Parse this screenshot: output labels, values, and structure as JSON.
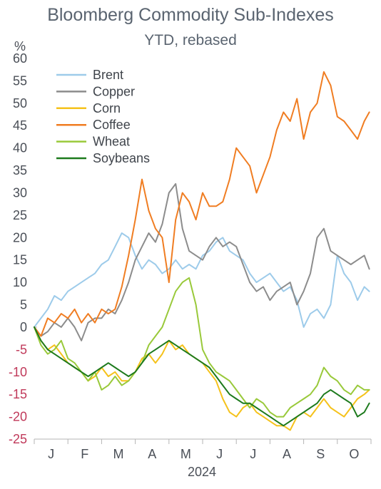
{
  "chart_data": {
    "type": "line",
    "title": "Bloomberg Commodity Sub-Indexes",
    "subtitle": "YTD, rebased",
    "ylabel": "%",
    "xlabel": "2024",
    "ylim": [
      -25,
      60
    ],
    "yticks": [
      60,
      55,
      50,
      45,
      40,
      35,
      30,
      25,
      20,
      15,
      10,
      5,
      0,
      -5,
      -10,
      -15,
      -20,
      -25
    ],
    "xlim": [
      0,
      10
    ],
    "month_labels": [
      "J",
      "F",
      "M",
      "A",
      "M",
      "J",
      "J",
      "A",
      "S",
      "O"
    ],
    "grid": false,
    "legend_position": "top-left",
    "series": [
      {
        "name": "Brent",
        "color": "#9dcbea",
        "x": [
          0,
          0.2,
          0.4,
          0.6,
          0.8,
          1.0,
          1.2,
          1.4,
          1.6,
          1.8,
          2.0,
          2.2,
          2.4,
          2.6,
          2.8,
          3.0,
          3.2,
          3.4,
          3.6,
          3.8,
          4.0,
          4.2,
          4.4,
          4.6,
          4.8,
          5.0,
          5.2,
          5.4,
          5.6,
          5.8,
          6.0,
          6.2,
          6.4,
          6.6,
          6.8,
          7.0,
          7.2,
          7.4,
          7.6,
          7.8,
          8.0,
          8.2,
          8.4,
          8.6,
          8.8,
          9.0,
          9.2,
          9.4,
          9.6,
          9.8,
          9.95
        ],
        "y": [
          0,
          2,
          4,
          7,
          6,
          8,
          9,
          10,
          11,
          12,
          14,
          15,
          18,
          21,
          20,
          16,
          13,
          15,
          14,
          12,
          13,
          15,
          13,
          14,
          13,
          16,
          17,
          19,
          20,
          17,
          16,
          15,
          12,
          10,
          11,
          12,
          10,
          8,
          9,
          6,
          0,
          3,
          4,
          2,
          5,
          16,
          12,
          10,
          6,
          9,
          8
        ]
      },
      {
        "name": "Copper",
        "color": "#8c8c8c",
        "x": [
          0,
          0.2,
          0.4,
          0.6,
          0.8,
          1.0,
          1.2,
          1.4,
          1.6,
          1.8,
          2.0,
          2.2,
          2.4,
          2.6,
          2.8,
          3.0,
          3.2,
          3.4,
          3.6,
          3.8,
          4.0,
          4.2,
          4.4,
          4.6,
          4.8,
          5.0,
          5.2,
          5.4,
          5.6,
          5.8,
          6.0,
          6.2,
          6.4,
          6.6,
          6.8,
          7.0,
          7.2,
          7.4,
          7.6,
          7.8,
          8.0,
          8.2,
          8.4,
          8.6,
          8.8,
          9.0,
          9.2,
          9.4,
          9.6,
          9.8,
          9.95
        ],
        "y": [
          0,
          -2,
          -1,
          1,
          0,
          2,
          0,
          -3,
          1,
          2,
          2,
          4,
          3,
          6,
          10,
          15,
          18,
          21,
          19,
          23,
          30,
          32,
          22,
          17,
          16,
          15,
          18,
          20,
          18,
          19,
          18,
          14,
          10,
          8,
          9,
          6,
          8,
          9,
          10,
          5,
          8,
          12,
          20,
          22,
          17,
          16,
          15,
          14,
          15,
          16,
          13
        ]
      },
      {
        "name": "Corn",
        "color": "#f5c21b",
        "x": [
          0,
          0.2,
          0.4,
          0.6,
          0.8,
          1.0,
          1.2,
          1.4,
          1.6,
          1.8,
          2.0,
          2.2,
          2.4,
          2.6,
          2.8,
          3.0,
          3.2,
          3.4,
          3.6,
          3.8,
          4.0,
          4.2,
          4.4,
          4.6,
          4.8,
          5.0,
          5.2,
          5.4,
          5.6,
          5.8,
          6.0,
          6.2,
          6.4,
          6.6,
          6.8,
          7.0,
          7.2,
          7.4,
          7.6,
          7.8,
          8.0,
          8.2,
          8.4,
          8.6,
          8.8,
          9.0,
          9.2,
          9.4,
          9.6,
          9.8,
          9.95
        ],
        "y": [
          0,
          -3,
          -5,
          -4,
          -6,
          -8,
          -9,
          -10,
          -12,
          -11,
          -9,
          -11,
          -10,
          -12,
          -12,
          -10,
          -7,
          -6,
          -8,
          -6,
          -3,
          -5,
          -4,
          -6,
          -7,
          -8,
          -10,
          -12,
          -16,
          -19,
          -20,
          -18,
          -17,
          -19,
          -20,
          -21,
          -22,
          -22,
          -23,
          -20,
          -19,
          -20,
          -18,
          -16,
          -18,
          -19,
          -20,
          -18,
          -16,
          -15,
          -14
        ]
      },
      {
        "name": "Coffee",
        "color": "#f07d22",
        "x": [
          0,
          0.2,
          0.4,
          0.6,
          0.8,
          1.0,
          1.2,
          1.4,
          1.6,
          1.8,
          2.0,
          2.2,
          2.4,
          2.6,
          2.8,
          3.0,
          3.2,
          3.4,
          3.6,
          3.8,
          4.0,
          4.2,
          4.4,
          4.6,
          4.8,
          5.0,
          5.2,
          5.4,
          5.6,
          5.8,
          6.0,
          6.2,
          6.4,
          6.6,
          6.8,
          7.0,
          7.2,
          7.4,
          7.6,
          7.8,
          8.0,
          8.2,
          8.4,
          8.6,
          8.8,
          9.0,
          9.2,
          9.4,
          9.6,
          9.8,
          9.95
        ],
        "y": [
          0,
          -2,
          2,
          1,
          3,
          2,
          4,
          1,
          3,
          1,
          4,
          3,
          4,
          9,
          16,
          24,
          33,
          26,
          22,
          20,
          10,
          24,
          30,
          28,
          24,
          30,
          27,
          27,
          28,
          33,
          40,
          38,
          36,
          30,
          34,
          38,
          44,
          48,
          46,
          51,
          42,
          48,
          50,
          57,
          54,
          47,
          46,
          44,
          42,
          46,
          48
        ]
      },
      {
        "name": "Wheat",
        "color": "#99c93a",
        "x": [
          0,
          0.2,
          0.4,
          0.6,
          0.8,
          1.0,
          1.2,
          1.4,
          1.6,
          1.8,
          2.0,
          2.2,
          2.4,
          2.6,
          2.8,
          3.0,
          3.2,
          3.4,
          3.6,
          3.8,
          4.0,
          4.2,
          4.4,
          4.6,
          4.8,
          5.0,
          5.2,
          5.4,
          5.6,
          5.8,
          6.0,
          6.2,
          6.4,
          6.6,
          6.8,
          7.0,
          7.2,
          7.4,
          7.6,
          7.8,
          8.0,
          8.2,
          8.4,
          8.6,
          8.8,
          9.0,
          9.2,
          9.4,
          9.6,
          9.8,
          9.95
        ],
        "y": [
          0,
          -4,
          -6,
          -5,
          -3,
          -7,
          -8,
          -10,
          -12,
          -10,
          -14,
          -13,
          -11,
          -13,
          -12,
          -10,
          -8,
          -4,
          -2,
          0,
          4,
          8,
          10,
          11,
          5,
          -5,
          -8,
          -10,
          -11,
          -12,
          -14,
          -16,
          -18,
          -16,
          -17,
          -19,
          -20,
          -20,
          -18,
          -17,
          -16,
          -15,
          -13,
          -9,
          -11,
          -12,
          -14,
          -15,
          -13,
          -14,
          -14
        ]
      },
      {
        "name": "Soybeans",
        "color": "#1d7a1d",
        "x": [
          0,
          0.2,
          0.4,
          0.6,
          0.8,
          1.0,
          1.2,
          1.4,
          1.6,
          1.8,
          2.0,
          2.2,
          2.4,
          2.6,
          2.8,
          3.0,
          3.2,
          3.4,
          3.6,
          3.8,
          4.0,
          4.2,
          4.4,
          4.6,
          4.8,
          5.0,
          5.2,
          5.4,
          5.6,
          5.8,
          6.0,
          6.2,
          6.4,
          6.6,
          6.8,
          7.0,
          7.2,
          7.4,
          7.6,
          7.8,
          8.0,
          8.2,
          8.4,
          8.6,
          8.8,
          9.0,
          9.2,
          9.4,
          9.6,
          9.8,
          9.95
        ],
        "y": [
          0,
          -3,
          -5,
          -6,
          -7,
          -8,
          -9,
          -10,
          -11,
          -10,
          -9,
          -8,
          -9,
          -10,
          -11,
          -10,
          -8,
          -6,
          -5,
          -4,
          -3,
          -4,
          -5,
          -6,
          -7,
          -8,
          -9,
          -11,
          -13,
          -15,
          -16,
          -17,
          -17,
          -18,
          -19,
          -20,
          -21,
          -22,
          -21,
          -20,
          -19,
          -18,
          -17,
          -15,
          -14,
          -15,
          -16,
          -17,
          -20,
          -19,
          -17
        ]
      }
    ]
  }
}
